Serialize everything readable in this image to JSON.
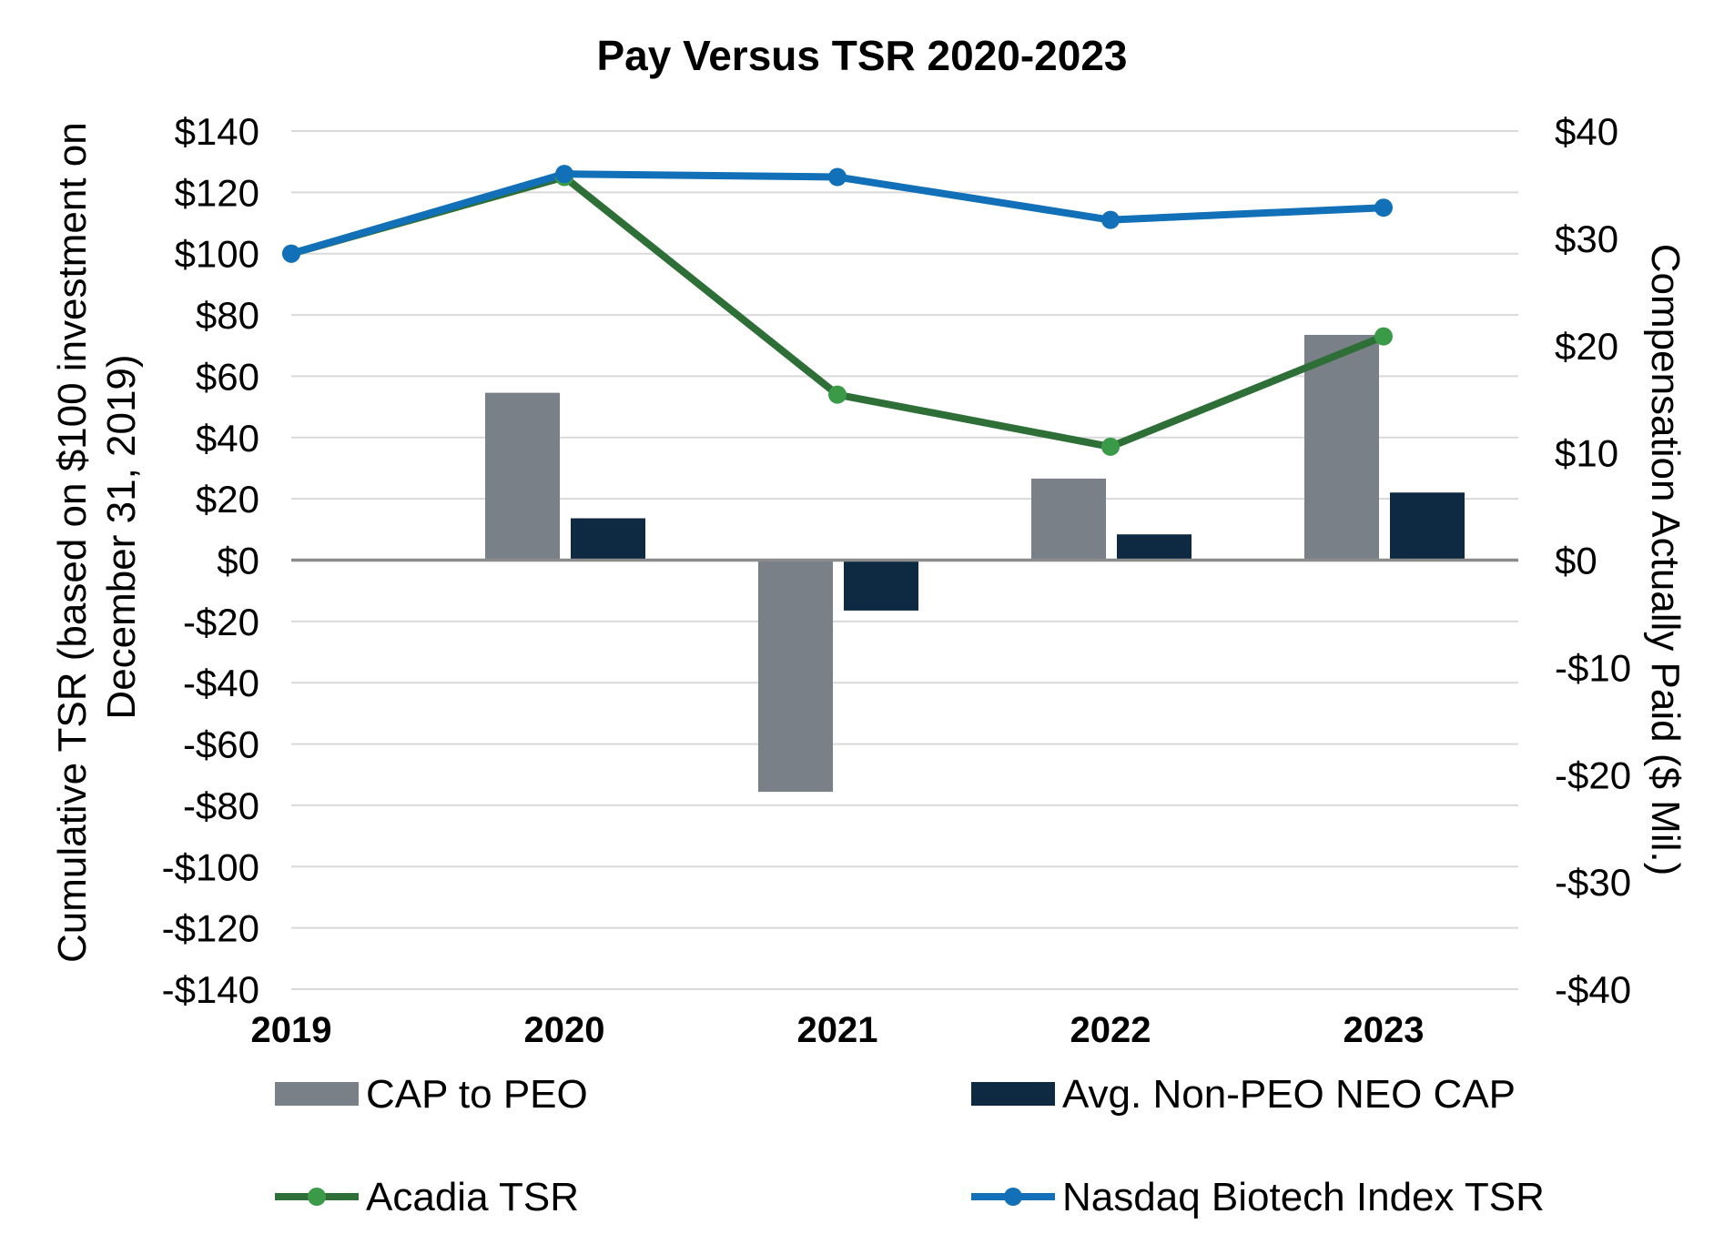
{
  "chart_data": {
    "type": "bar",
    "title": "Pay Versus TSR 2020-2023",
    "categories": [
      "2019",
      "2020",
      "2021",
      "2022",
      "2023"
    ],
    "y_left": {
      "label": "Cumulative TSR (based on $100 investment on December 31, 2019)",
      "label_lines": [
        "Cumulative TSR (based on $100 investment on",
        "December 31, 2019)"
      ],
      "range": [
        -140,
        140
      ],
      "ticks": [
        140,
        120,
        100,
        80,
        60,
        40,
        20,
        0,
        -20,
        -40,
        -60,
        -80,
        -100,
        -120,
        -140
      ],
      "tick_labels": [
        "$140",
        "$120",
        "$100",
        "$80",
        "$60",
        "$40",
        "$20",
        "$0",
        "-$20",
        "-$40",
        "-$60",
        "-$80",
        "-$100",
        "-$120",
        "-$140"
      ]
    },
    "y_right": {
      "label": "Compensation Actually Paid ($ Mil.)",
      "range": [
        -40,
        40
      ],
      "ticks": [
        40,
        30,
        20,
        10,
        0,
        -10,
        -20,
        -30,
        -40
      ],
      "tick_labels": [
        "$40",
        "$30",
        "$20",
        "$10",
        "$0",
        "-$10",
        "-$20",
        "-$30",
        "-$40"
      ]
    },
    "bar_series": [
      {
        "name": "CAP to PEO",
        "axis": "right",
        "color": "#7a8088",
        "values": [
          null,
          15.6,
          -21.6,
          7.6,
          21.0
        ]
      },
      {
        "name": "Avg. Non-PEO NEO CAP",
        "axis": "right",
        "color": "#0d2a42",
        "values": [
          null,
          3.9,
          -4.7,
          2.4,
          6.3
        ]
      }
    ],
    "line_series": [
      {
        "name": "Acadia TSR",
        "axis": "left",
        "color": "#2e6e37",
        "marker_color": "#3a9a48",
        "values": [
          100,
          125,
          54,
          37,
          73
        ]
      },
      {
        "name": "Nasdaq Biotech Index TSR",
        "axis": "left",
        "color": "#1170b8",
        "marker_color": "#1170b8",
        "values": [
          100,
          126,
          125,
          111,
          115
        ]
      }
    ],
    "grid": true,
    "legend": "bottom"
  }
}
